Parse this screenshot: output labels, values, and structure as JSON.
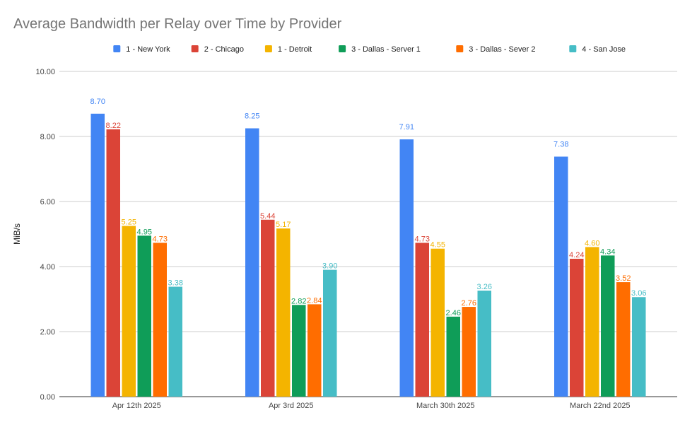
{
  "chart_data": {
    "type": "bar",
    "title": "Average Bandwidth per Relay over Time by Provider",
    "xlabel": "",
    "ylabel": "MiB/s",
    "ylim": [
      0,
      10
    ],
    "yticks": [
      0,
      2,
      4,
      6,
      8,
      10
    ],
    "ytick_labels": [
      "0.00",
      "2.00",
      "4.00",
      "6.00",
      "8.00",
      "10.00"
    ],
    "grid": true,
    "legend_position": "top-center",
    "categories": [
      "Apr 12th 2025",
      "Apr 3rd 2025",
      "March 30th 2025",
      "March 22nd 2025"
    ],
    "series": [
      {
        "name": "1 - New York",
        "color": "#4285f4",
        "values": [
          8.7,
          8.25,
          7.91,
          7.38
        ],
        "labels": [
          "8.70",
          "8.25",
          "7.91",
          "7.38"
        ]
      },
      {
        "name": "2 - Chicago",
        "color": "#db4437",
        "values": [
          8.22,
          5.44,
          4.73,
          4.24
        ],
        "labels": [
          "8.22",
          "5.44",
          "4.73",
          "4.24"
        ]
      },
      {
        "name": "1 - Detroit",
        "color": "#f4b400",
        "values": [
          5.25,
          5.17,
          4.55,
          4.6
        ],
        "labels": [
          "5.25",
          "5.17",
          "4.55",
          "4.60"
        ]
      },
      {
        "name": "3 - Dallas - Server 1",
        "color": "#0f9d58",
        "values": [
          4.95,
          2.82,
          2.46,
          4.34
        ],
        "labels": [
          "4.95",
          "2.82",
          "2.46",
          "4.34"
        ]
      },
      {
        "name": "3 - Dallas - Sever 2",
        "color": "#ff6d00",
        "values": [
          4.73,
          2.84,
          2.76,
          3.52
        ],
        "labels": [
          "4.73",
          "2.84",
          "2.76",
          "3.52"
        ]
      },
      {
        "name": "4 - San Jose",
        "color": "#46bdc6",
        "values": [
          3.38,
          3.9,
          3.26,
          3.06
        ],
        "labels": [
          "3.38",
          "3.90",
          "3.26",
          "3.06"
        ]
      }
    ]
  }
}
